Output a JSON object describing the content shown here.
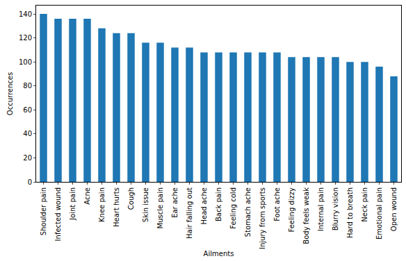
{
  "chart_data": {
    "type": "bar",
    "x_label": "Ailments",
    "y_label": "Occurrences",
    "categories": [
      "Shoulder pain",
      "Infected wound",
      "Joint pain",
      "Acne",
      "Knee pain",
      "Heart hurts",
      "Cough",
      "Skin issue",
      "Muscle pain",
      "Ear ache",
      "Hair falling out",
      "Head ache",
      "Back pain",
      "Feeling cold",
      "Stomach ache",
      "Injury from sports",
      "Foot ache",
      "Feeling dizzy",
      "Body feels weak",
      "Internal pain",
      "Blurry vision",
      "Hard to breath",
      "Neck pain",
      "Emotional pain",
      "Open wound"
    ],
    "values": [
      140,
      136,
      136,
      136,
      128,
      124,
      124,
      116,
      116,
      112,
      112,
      108,
      108,
      108,
      108,
      108,
      108,
      104,
      104,
      104,
      104,
      100,
      100,
      96,
      88
    ],
    "color": "#1f77b4",
    "ylim": [
      0,
      147
    ],
    "yticks": [
      0,
      20,
      40,
      60,
      80,
      100,
      120,
      140
    ],
    "grid": false
  }
}
